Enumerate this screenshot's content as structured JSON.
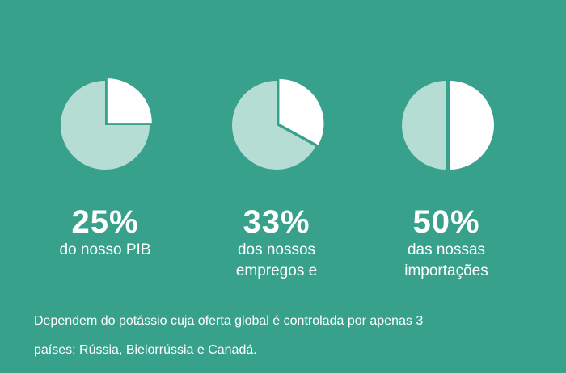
{
  "chart_data": [
    {
      "type": "pie",
      "values": [
        25,
        75
      ],
      "highlight_value": 25,
      "highlight_label": "25%",
      "description": [
        "do nosso PIB"
      ]
    },
    {
      "type": "pie",
      "values": [
        33,
        67
      ],
      "highlight_value": 33,
      "highlight_label": "33%",
      "description": [
        "dos nossos",
        "empregos e"
      ]
    },
    {
      "type": "pie",
      "values": [
        50,
        50
      ],
      "highlight_value": 50,
      "highlight_label": "50%",
      "description": [
        "das nossas",
        "importações"
      ]
    }
  ],
  "colors": {
    "background": "#38a18c",
    "slice_highlight": "#ffffff",
    "slice_rest": "#b5ddd3"
  },
  "footnote": {
    "line1": "Dependem do potássio cuja oferta global é controlada por apenas 3",
    "line2": "países: Rússia, Bielorrússia e Canadá."
  }
}
